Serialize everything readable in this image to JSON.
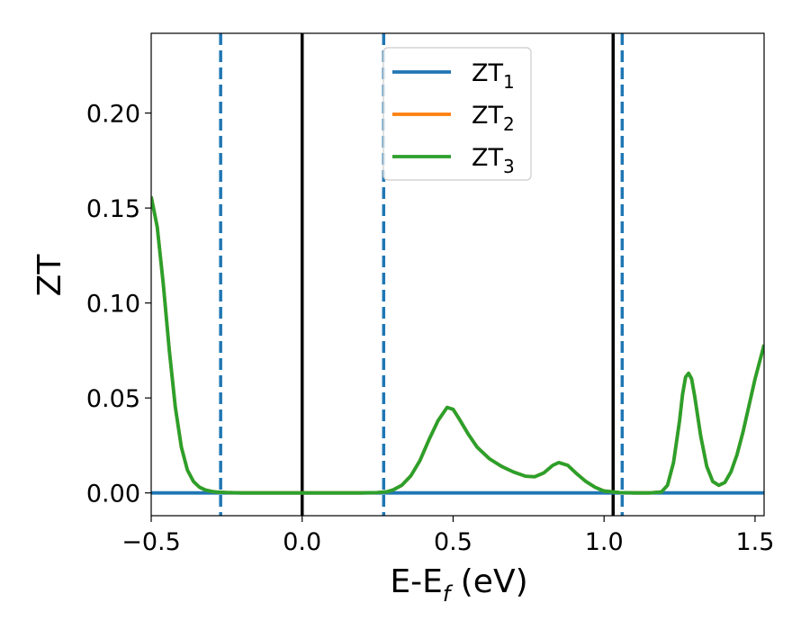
{
  "chart_data": {
    "type": "line",
    "xlabel": "E-E",
    "xlabel_sub": "f",
    "xlabel_unit": " (eV)",
    "ylabel": "ZT",
    "xlim": [
      -0.5,
      1.53
    ],
    "ylim": [
      -0.012,
      0.242
    ],
    "xticks": [
      -0.5,
      0.0,
      0.5,
      1.0,
      1.5
    ],
    "xtick_labels": [
      "−0.5",
      "0.0",
      "0.5",
      "1.0",
      "1.5"
    ],
    "yticks": [
      0.0,
      0.05,
      0.1,
      0.15,
      0.2
    ],
    "ytick_labels": [
      "0.00",
      "0.05",
      "0.10",
      "0.15",
      "0.20"
    ],
    "grid": false,
    "legend_position": "top-center",
    "series": [
      {
        "name": "ZT",
        "sub": "1",
        "color": "#1f77b4",
        "x": [
          -0.5,
          1.53
        ],
        "y": [
          0.0,
          0.0
        ]
      },
      {
        "name": "ZT",
        "sub": "2",
        "color": "#ff7f0e",
        "x": [
          -0.5,
          -0.48,
          -0.46,
          -0.44,
          -0.42,
          -0.4,
          -0.38,
          -0.36,
          -0.34,
          -0.32,
          -0.3,
          -0.28,
          -0.25,
          -0.2,
          -0.1,
          0.0,
          0.1,
          0.2,
          0.25,
          0.28,
          0.3,
          0.33,
          0.36,
          0.39,
          0.42,
          0.45,
          0.48,
          0.5,
          0.52,
          0.55,
          0.58,
          0.62,
          0.66,
          0.7,
          0.74,
          0.77,
          0.8,
          0.83,
          0.85,
          0.88,
          0.91,
          0.94,
          0.97,
          1.0,
          1.05,
          1.1,
          1.15,
          1.19,
          1.21,
          1.23,
          1.25,
          1.26,
          1.27,
          1.28,
          1.29,
          1.3,
          1.32,
          1.34,
          1.36,
          1.38,
          1.4,
          1.42,
          1.44,
          1.46,
          1.48,
          1.5,
          1.53
        ],
        "y": [
          0.156,
          0.14,
          0.11,
          0.075,
          0.045,
          0.024,
          0.012,
          0.006,
          0.003,
          0.0015,
          0.0008,
          0.0004,
          0.0002,
          0.0,
          0.0,
          0.0,
          0.0,
          0.0,
          0.0002,
          0.0006,
          0.0015,
          0.004,
          0.009,
          0.017,
          0.028,
          0.038,
          0.045,
          0.044,
          0.039,
          0.031,
          0.024,
          0.018,
          0.014,
          0.011,
          0.0088,
          0.0085,
          0.0105,
          0.0145,
          0.016,
          0.0145,
          0.01,
          0.006,
          0.003,
          0.001,
          0.0002,
          0.0,
          0.0,
          0.0005,
          0.004,
          0.016,
          0.038,
          0.052,
          0.061,
          0.063,
          0.06,
          0.051,
          0.03,
          0.014,
          0.006,
          0.004,
          0.0055,
          0.011,
          0.02,
          0.032,
          0.046,
          0.06,
          0.078
        ]
      },
      {
        "name": "ZT",
        "sub": "3",
        "color": "#2ca02c",
        "x": [
          -0.5,
          -0.48,
          -0.46,
          -0.44,
          -0.42,
          -0.4,
          -0.38,
          -0.36,
          -0.34,
          -0.32,
          -0.3,
          -0.28,
          -0.25,
          -0.2,
          -0.1,
          0.0,
          0.1,
          0.2,
          0.25,
          0.28,
          0.3,
          0.33,
          0.36,
          0.39,
          0.42,
          0.45,
          0.48,
          0.5,
          0.52,
          0.55,
          0.58,
          0.62,
          0.66,
          0.7,
          0.74,
          0.77,
          0.8,
          0.83,
          0.85,
          0.88,
          0.91,
          0.94,
          0.97,
          1.0,
          1.05,
          1.1,
          1.15,
          1.19,
          1.21,
          1.23,
          1.25,
          1.26,
          1.27,
          1.28,
          1.29,
          1.3,
          1.32,
          1.34,
          1.36,
          1.38,
          1.4,
          1.42,
          1.44,
          1.46,
          1.48,
          1.5,
          1.53
        ],
        "y": [
          0.156,
          0.14,
          0.11,
          0.075,
          0.045,
          0.024,
          0.012,
          0.006,
          0.003,
          0.0015,
          0.0008,
          0.0004,
          0.0002,
          0.0,
          0.0,
          0.0,
          0.0,
          0.0,
          0.0002,
          0.0006,
          0.0015,
          0.004,
          0.009,
          0.017,
          0.028,
          0.038,
          0.045,
          0.044,
          0.039,
          0.031,
          0.024,
          0.018,
          0.014,
          0.011,
          0.0088,
          0.0085,
          0.0105,
          0.0145,
          0.016,
          0.0145,
          0.01,
          0.006,
          0.003,
          0.001,
          0.0002,
          0.0,
          0.0,
          0.0005,
          0.004,
          0.016,
          0.038,
          0.052,
          0.061,
          0.063,
          0.06,
          0.051,
          0.03,
          0.014,
          0.006,
          0.004,
          0.0055,
          0.011,
          0.02,
          0.032,
          0.046,
          0.06,
          0.078
        ]
      }
    ],
    "vlines": [
      {
        "x": 0.0,
        "style": "solid",
        "color": "#000000"
      },
      {
        "x": 1.03,
        "style": "solid",
        "color": "#000000"
      },
      {
        "x": -0.27,
        "style": "dashed",
        "color": "#1f77b4"
      },
      {
        "x": 0.27,
        "style": "dashed",
        "color": "#1f77b4"
      },
      {
        "x": 1.06,
        "style": "dashed",
        "color": "#1f77b4"
      }
    ]
  }
}
